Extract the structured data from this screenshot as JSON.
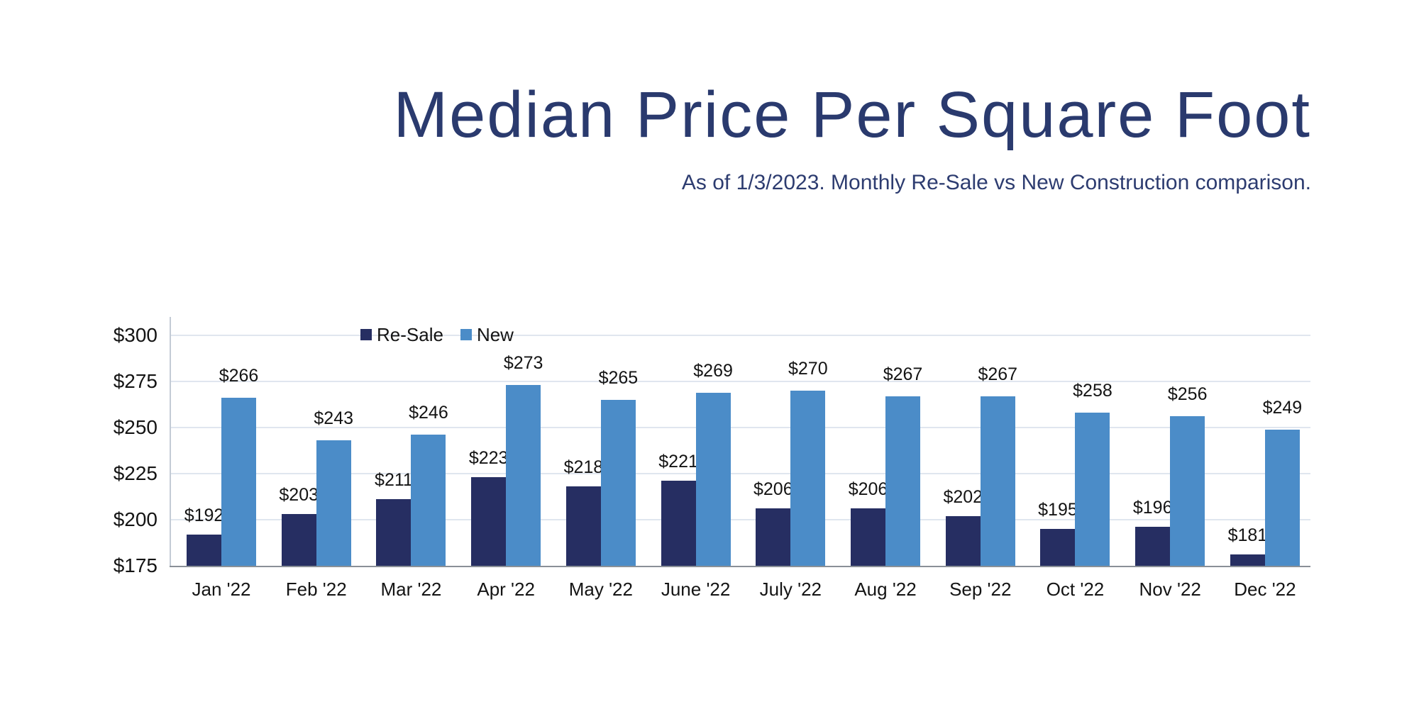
{
  "header": {
    "title": "Median Price Per Square Foot",
    "subtitle": "As of 1/3/2023. Monthly Re-Sale vs New Construction comparison."
  },
  "colors": {
    "title_text": "#2A3A6E",
    "subtitle_text": "#2D3C70",
    "resale_bar": "#262E62",
    "new_bar": "#4B8CC8",
    "gridline": "#E0E6EF",
    "axis_line": "#C3CBD5",
    "baseline": "#8A9097",
    "label_text": "#141414"
  },
  "chart_data": {
    "type": "bar",
    "title": "Median Price Per Square Foot",
    "subtitle": "As of 1/3/2023. Monthly Re-Sale vs New Construction comparison.",
    "categories": [
      "Jan '22",
      "Feb '22",
      "Mar '22",
      "Apr '22",
      "May '22",
      "June '22",
      "July '22",
      "Aug '22",
      "Sep '22",
      "Oct '22",
      "Nov '22",
      "Dec '22"
    ],
    "series": [
      {
        "name": "Re-Sale",
        "color_key": "resale_bar",
        "values": [
          192,
          203,
          211,
          223,
          218,
          221,
          206,
          206,
          202,
          195,
          196,
          181
        ]
      },
      {
        "name": "New",
        "color_key": "new_bar",
        "values": [
          266,
          243,
          246,
          273,
          265,
          269,
          270,
          267,
          267,
          258,
          256,
          249
        ]
      }
    ],
    "data_label_prefix": "$",
    "y_axis": {
      "min": 175,
      "max": 300,
      "tick_step": 25,
      "tick_labels": [
        "$175",
        "$200",
        "$225",
        "$250",
        "$275",
        "$300"
      ]
    },
    "legend": {
      "position": "top-left-inside",
      "entries": [
        "Re-Sale",
        "New"
      ]
    },
    "grid": true,
    "ylim": [
      175,
      300
    ]
  }
}
